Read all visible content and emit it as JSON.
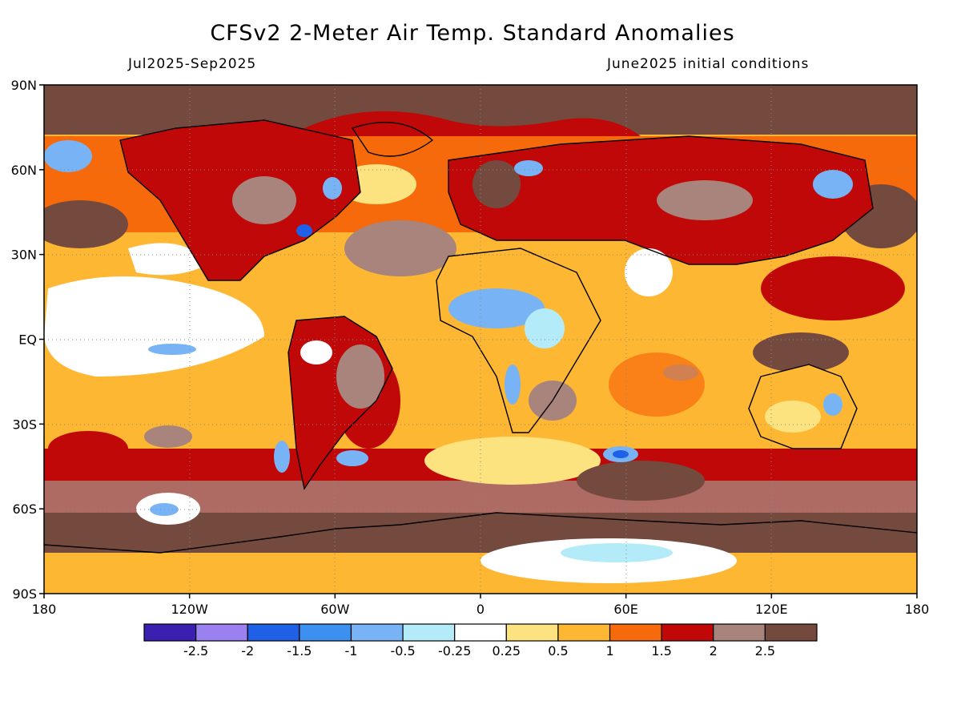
{
  "title": "CFSv2 2-Meter Air Temp. Standard Anomalies",
  "period": "Jul2025-Sep2025",
  "initial_conditions": "June2025 initial conditions",
  "lat_labels": [
    "90N",
    "60N",
    "30N",
    "EQ",
    "30S",
    "60S",
    "90S"
  ],
  "lon_labels": [
    "180",
    "120W",
    "60W",
    "0",
    "60E",
    "120E",
    "180"
  ],
  "legend": {
    "colors": [
      "#3b1fb0",
      "#9b80f0",
      "#1e60e6",
      "#3c91f0",
      "#78b4f5",
      "#b4ebf8",
      "#ffffff",
      "#fde280",
      "#fdb733",
      "#f76a0b",
      "#c00808",
      "#a8847c",
      "#744a3e"
    ],
    "labels": [
      "-2.5",
      "-2",
      "-1.5",
      "-1",
      "-0.5",
      "-0.25",
      "0.25",
      "0.5",
      "1",
      "1.5",
      "2",
      "2.5"
    ]
  },
  "colors": {
    "ocean_base": "#fdb733",
    "land_base": "#c00808",
    "coastline": "#000000"
  }
}
